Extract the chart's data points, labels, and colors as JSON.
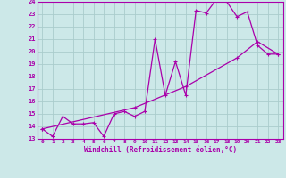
{
  "xlabel": "Windchill (Refroidissement éolien,°C)",
  "xlim": [
    -0.5,
    23.5
  ],
  "ylim": [
    13,
    24
  ],
  "xticks": [
    0,
    1,
    2,
    3,
    4,
    5,
    6,
    7,
    8,
    9,
    10,
    11,
    12,
    13,
    14,
    15,
    16,
    17,
    18,
    19,
    20,
    21,
    22,
    23
  ],
  "yticks": [
    13,
    14,
    15,
    16,
    17,
    18,
    19,
    20,
    21,
    22,
    23,
    24
  ],
  "background_color": "#cce8e8",
  "line_color": "#aa00aa",
  "grid_color": "#aacccc",
  "line1_x": [
    0,
    1,
    2,
    3,
    4,
    5,
    6,
    7,
    8,
    9,
    10,
    11,
    12,
    13,
    14,
    15,
    16,
    17,
    18,
    19,
    20,
    21,
    22,
    23
  ],
  "line1_y": [
    13.8,
    13.2,
    14.8,
    14.2,
    14.2,
    14.3,
    13.2,
    15.0,
    15.2,
    14.8,
    15.2,
    21.0,
    16.5,
    19.2,
    16.5,
    23.3,
    23.1,
    24.2,
    24.0,
    22.8,
    23.2,
    20.5,
    19.8,
    19.8
  ],
  "line2_x": [
    0,
    9,
    14,
    19,
    21,
    23
  ],
  "line2_y": [
    13.8,
    15.5,
    17.2,
    19.5,
    20.8,
    19.8
  ],
  "marker": "+"
}
